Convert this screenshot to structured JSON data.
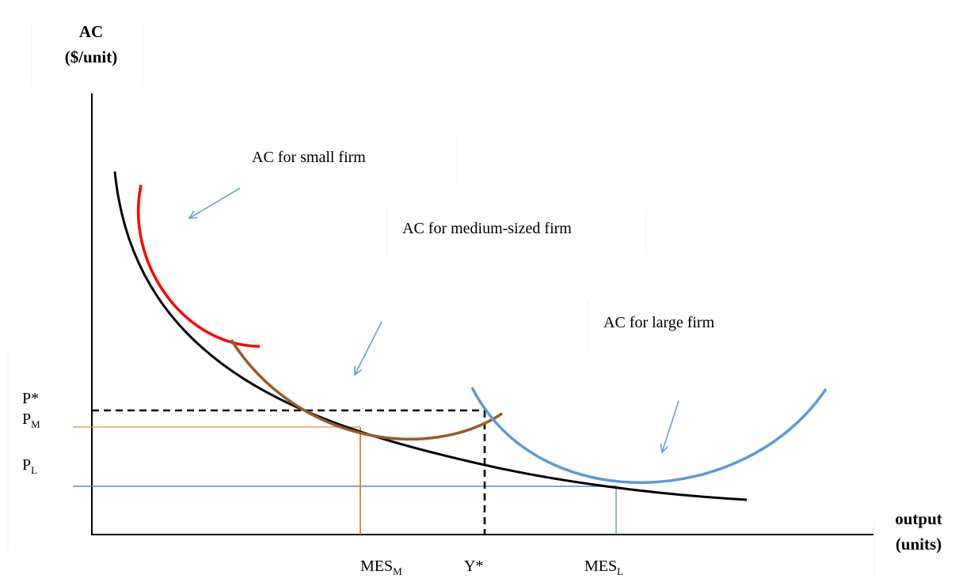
{
  "axes": {
    "y_label_line1": "AC",
    "y_label_line2": "($/unit)",
    "x_label_line1": "output",
    "x_label_line2": "(units)"
  },
  "curve_labels": {
    "small": "AC for small firm",
    "medium": "AC for medium-sized firm",
    "large": "AC for large firm"
  },
  "price_labels": {
    "p_star": "P*",
    "p_m_main": "P",
    "p_m_sub": "M",
    "p_l_main": "P",
    "p_l_sub": "L"
  },
  "output_labels": {
    "mes_m_main": "MES",
    "mes_m_sub": "M",
    "y_star": "Y*",
    "mes_l_main": "MES",
    "mes_l_sub": "L"
  },
  "colors": {
    "axis": "#000000",
    "long_run_ac": "#000000",
    "small_firm_ac": "#ff0000",
    "medium_firm_ac": "#9c5a26",
    "large_firm_ac": "#5b9bd5",
    "pm_guide": "#e08a3c",
    "pl_guide": "#4472c4",
    "arrows": "#6a9ed8",
    "dashed_guide": "#000000"
  }
}
